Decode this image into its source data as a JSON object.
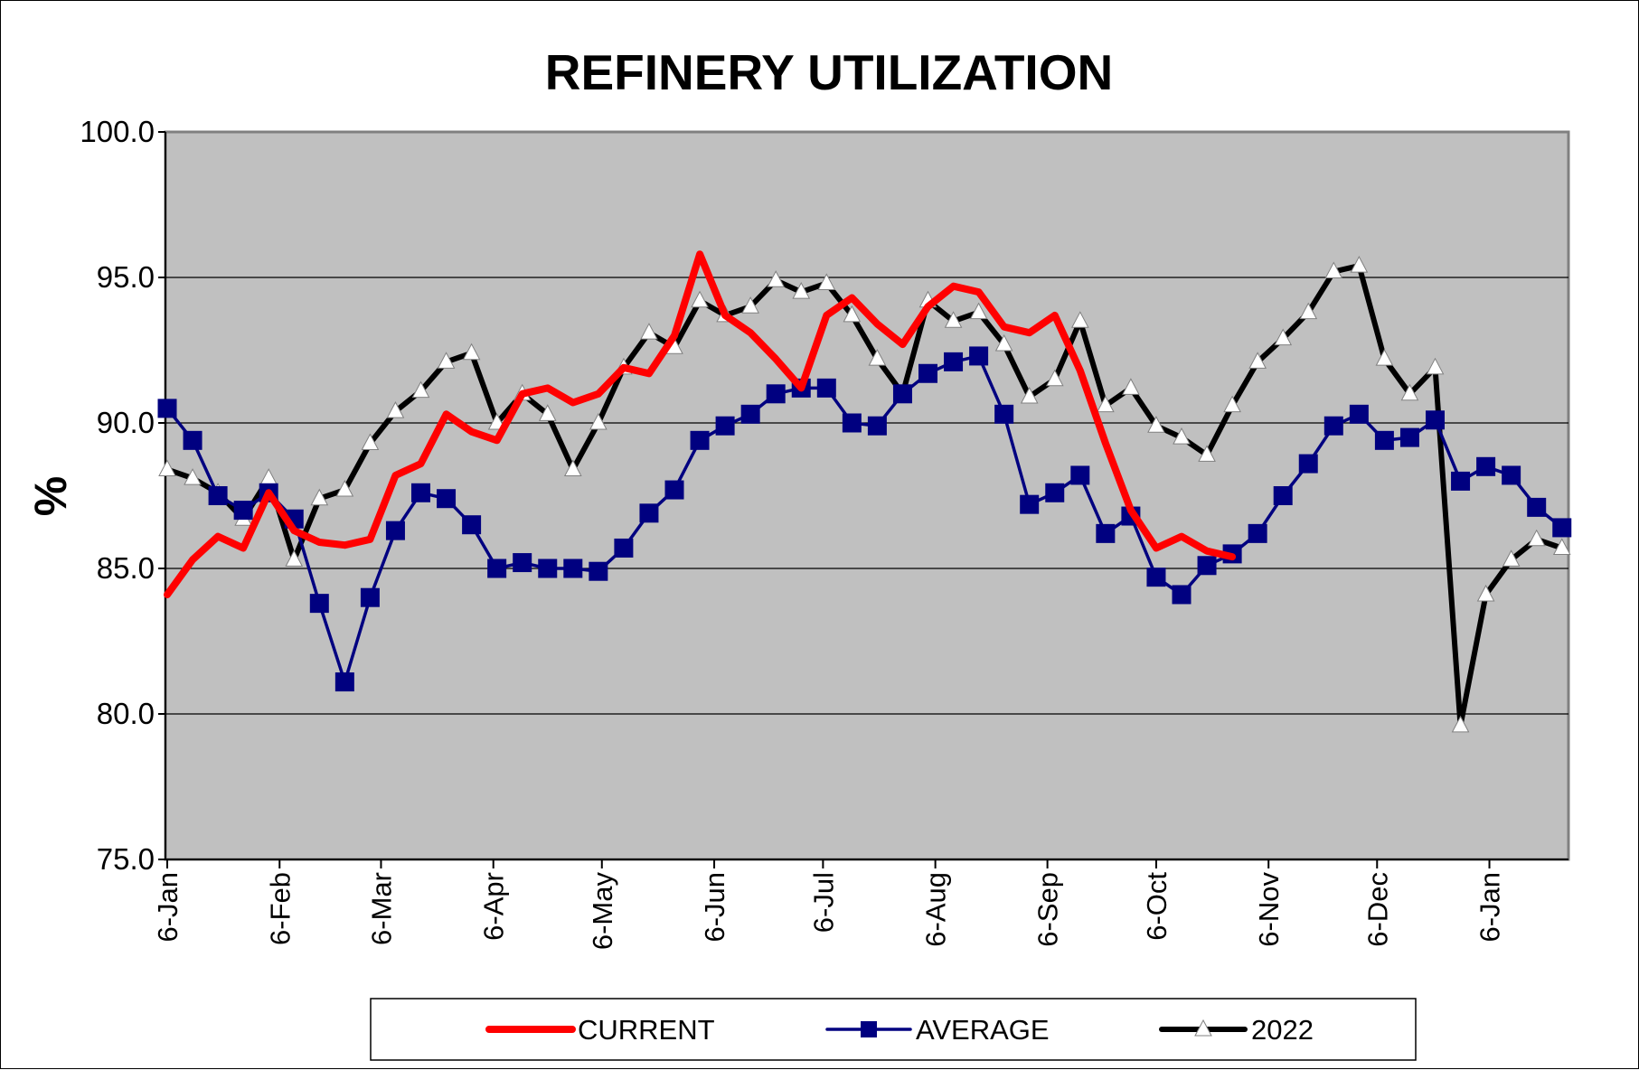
{
  "chart_data": {
    "type": "line",
    "title": "REFINERY UTILIZATION",
    "ylabel": "%",
    "xlabel": "",
    "ylim": [
      75.0,
      100.0
    ],
    "yticks": [
      "75.0",
      "80.0",
      "85.0",
      "90.0",
      "95.0",
      "100.0"
    ],
    "ytick_values": [
      75,
      80,
      85,
      90,
      95,
      100
    ],
    "x_week_count": 56,
    "xticks": [
      {
        "label": "6-Jan",
        "week": 0
      },
      {
        "label": "6-Feb",
        "week": 4.43
      },
      {
        "label": "6-Mar",
        "week": 8.43
      },
      {
        "label": "6-Apr",
        "week": 12.86
      },
      {
        "label": "6-May",
        "week": 17.14
      },
      {
        "label": "6-Jun",
        "week": 21.57
      },
      {
        "label": "6-Jul",
        "week": 25.86
      },
      {
        "label": "6-Aug",
        "week": 30.29
      },
      {
        "label": "6-Sep",
        "week": 34.71
      },
      {
        "label": "6-Oct",
        "week": 39.0
      },
      {
        "label": "6-Nov",
        "week": 43.43
      },
      {
        "label": "6-Dec",
        "week": 47.71
      },
      {
        "label": "6-Jan",
        "week": 52.14
      }
    ],
    "grid": true,
    "background": "#c0c0c0",
    "legend_position": "bottom",
    "series": [
      {
        "name": "CURRENT",
        "color": "#ff0000",
        "marker": "none",
        "values": [
          84.1,
          85.3,
          86.1,
          85.7,
          87.6,
          86.3,
          85.9,
          85.8,
          86.0,
          88.2,
          88.6,
          90.3,
          89.7,
          89.4,
          91.0,
          91.2,
          90.7,
          91.0,
          91.9,
          91.7,
          93.0,
          95.8,
          93.7,
          93.1,
          92.2,
          91.2,
          93.7,
          94.3,
          93.4,
          92.7,
          94.0,
          94.7,
          94.5,
          93.3,
          93.1,
          93.7,
          91.8,
          89.3,
          87.0,
          85.7,
          86.1,
          85.6,
          85.4
        ]
      },
      {
        "name": "AVERAGE",
        "color": "#000080",
        "marker": "square",
        "values": [
          90.5,
          89.4,
          87.5,
          87.0,
          87.6,
          86.7,
          83.8,
          81.1,
          84.0,
          86.3,
          87.6,
          87.4,
          86.5,
          85.0,
          85.2,
          85.0,
          85.0,
          84.9,
          85.7,
          86.9,
          87.7,
          89.4,
          89.9,
          90.3,
          91.0,
          91.2,
          91.2,
          90.0,
          89.9,
          91.0,
          91.7,
          92.1,
          92.3,
          90.3,
          87.2,
          87.6,
          88.2,
          86.2,
          86.8,
          84.7,
          84.1,
          85.1,
          85.5,
          86.2,
          87.5,
          88.6,
          89.9,
          90.3,
          89.4,
          89.5,
          90.1,
          88.0,
          88.5,
          88.2,
          87.1,
          86.4
        ]
      },
      {
        "name": "2022",
        "color": "#000000",
        "marker": "triangle",
        "values": [
          88.4,
          88.1,
          87.6,
          86.7,
          88.1,
          85.3,
          87.4,
          87.7,
          89.3,
          90.4,
          91.1,
          92.1,
          92.4,
          90.0,
          91.0,
          90.3,
          88.4,
          90.0,
          91.9,
          93.1,
          92.6,
          94.2,
          93.7,
          94.0,
          94.9,
          94.5,
          94.8,
          93.7,
          92.2,
          91.0,
          94.2,
          93.5,
          93.8,
          92.7,
          90.9,
          91.5,
          93.5,
          90.6,
          91.2,
          89.9,
          89.5,
          88.9,
          90.6,
          92.1,
          92.9,
          93.8,
          95.2,
          95.4,
          92.2,
          91.0,
          91.9,
          79.6,
          84.1,
          85.3,
          86.0,
          85.7
        ]
      }
    ]
  }
}
